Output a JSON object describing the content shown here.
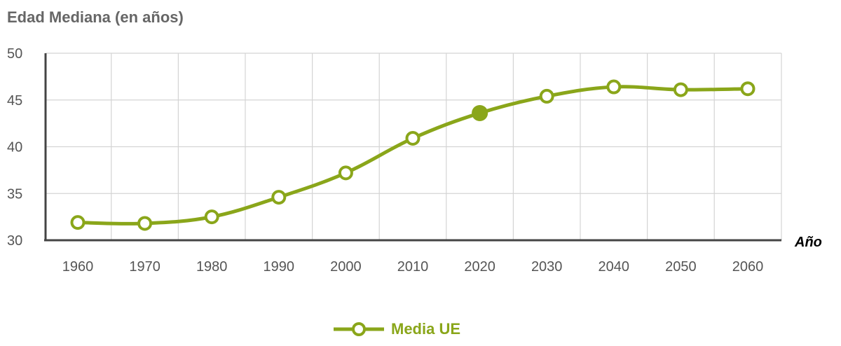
{
  "chart_data": {
    "type": "line",
    "title": "Edad Mediana (en años)",
    "xlabel": "Año",
    "ylabel": "",
    "categories": [
      "1960",
      "1970",
      "1980",
      "1990",
      "2000",
      "2010",
      "2020",
      "2030",
      "2040",
      "2050",
      "2060"
    ],
    "series": [
      {
        "name": "Media UE",
        "values": [
          31.9,
          31.8,
          32.5,
          34.6,
          37.2,
          40.9,
          43.6,
          45.4,
          46.4,
          46.1,
          46.2
        ],
        "color": "#8aa61a",
        "highlight_category": "2020"
      }
    ],
    "yticks": [
      "30",
      "35",
      "40",
      "45",
      "50"
    ],
    "ylim": [
      30,
      50
    ],
    "grid": true,
    "legend_position": "bottom-center"
  }
}
